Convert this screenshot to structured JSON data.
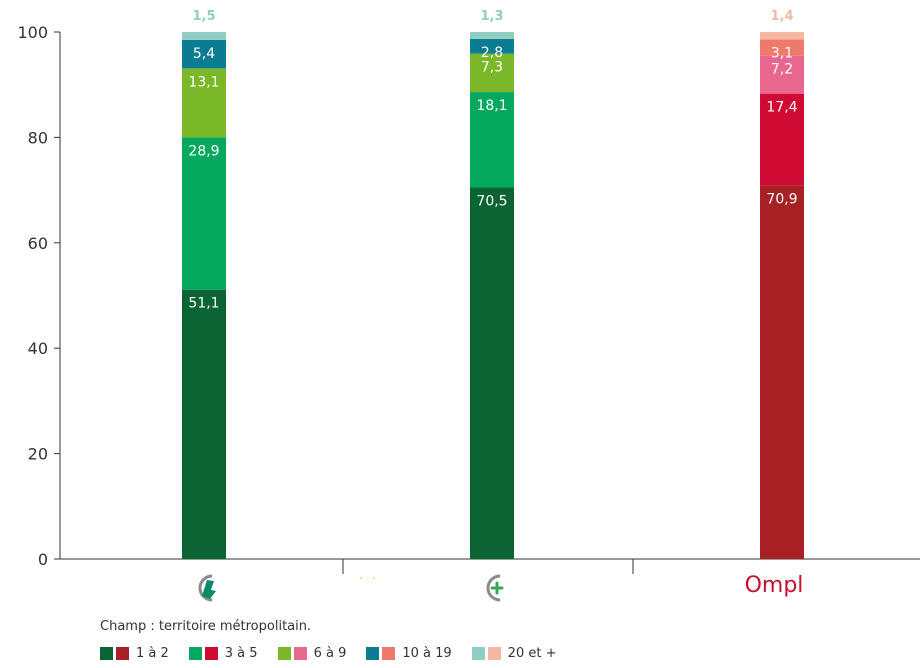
{
  "chart_data": {
    "type": "bar",
    "stacked": true,
    "ylim": [
      0,
      100
    ],
    "yticks": [
      0,
      20,
      40,
      60,
      80,
      100
    ],
    "grid": false,
    "categories": [
      "logo-1",
      "logo-2",
      "Ompl"
    ],
    "segments": [
      "1 à 2",
      "3 à 5",
      "6 à 9",
      "10 à 19",
      "20 et +"
    ],
    "values": [
      [
        51.1,
        28.9,
        13.1,
        5.4,
        1.5
      ],
      [
        70.5,
        18.1,
        7.3,
        2.8,
        1.3
      ],
      [
        70.9,
        17.4,
        7.2,
        3.1,
        1.4
      ]
    ],
    "value_labels": [
      [
        "51,1",
        "28,9",
        "13,1",
        "5,4",
        "1,5"
      ],
      [
        "70,5",
        "18,1",
        "7,3",
        "2,8",
        "1,3"
      ],
      [
        "70,9",
        "17,4",
        "7,2",
        "3,1",
        "1,4"
      ]
    ],
    "colors": [
      [
        "#0a6433",
        "#05a85f",
        "#7ab829",
        "#0a7d92",
        "#8fcfc3"
      ],
      [
        "#0a6433",
        "#05a85f",
        "#7ab829",
        "#0a7d92",
        "#8fcfc3"
      ],
      [
        "#a62024",
        "#cf0a33",
        "#e9678f",
        "#ee7a6c",
        "#f4b8a0"
      ]
    ]
  },
  "note": "Champ : territoire métropolitain.",
  "legend": [
    {
      "label": "1 à 2",
      "colors": [
        "#0a6433",
        "#a62024"
      ]
    },
    {
      "label": "3 à 5",
      "colors": [
        "#05a85f",
        "#cf0a33"
      ]
    },
    {
      "label": "6 à 9",
      "colors": [
        "#7ab829",
        "#e9678f"
      ]
    },
    {
      "label": "10 à 19",
      "colors": [
        "#0a7d92",
        "#ee7a6c"
      ]
    },
    {
      "label": "20 et +",
      "colors": [
        "#8fcfc3",
        "#f4b8a0"
      ]
    }
  ],
  "logos": {
    "third_text": "Ompl",
    "logo_color": "#8a8a8a",
    "ompl_color": "#c8102e"
  }
}
